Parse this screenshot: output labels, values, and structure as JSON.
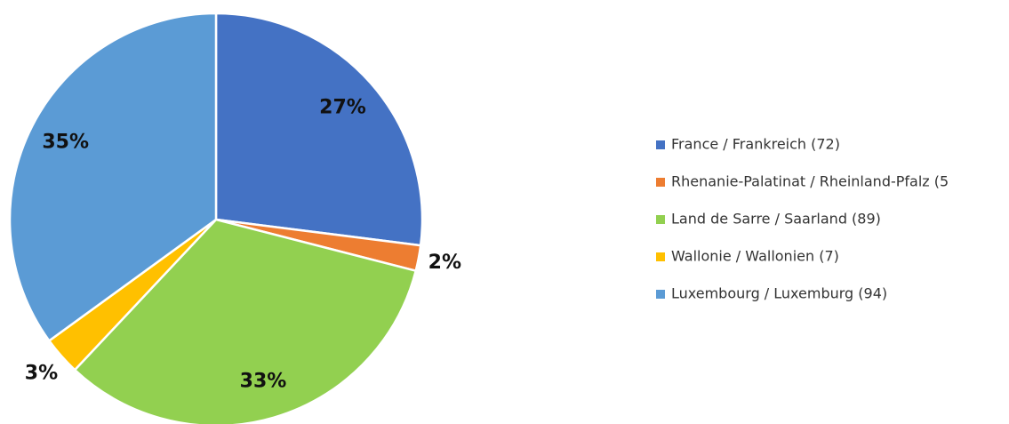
{
  "chart_data": {
    "type": "pie",
    "categories": [
      "France / Frankreich (72)",
      "Rhenanie-Palatinat / Rheinland-Pfalz (5",
      "Land de Sarre / Saarland (89)",
      "Wallonie / Wallonien (7)",
      "Luxembourg / Luxemburg (94)"
    ],
    "values": [
      27,
      2,
      33,
      3,
      35
    ],
    "value_labels": [
      "27%",
      "2%",
      "33%",
      "3%",
      "35%"
    ],
    "colors": [
      "#4472c4",
      "#ed7d31",
      "#92d050",
      "#ffc000",
      "#5b9bd5"
    ],
    "legend": "right"
  }
}
